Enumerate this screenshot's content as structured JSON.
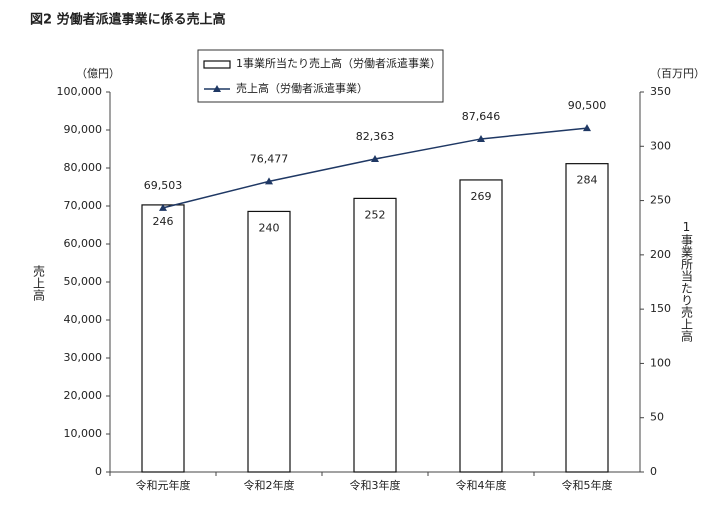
{
  "chart_data": {
    "type": "combo",
    "title": "図2 労働者派遣事業に係る売上高",
    "categories": [
      "令和元年度",
      "令和2年度",
      "令和3年度",
      "令和4年度",
      "令和5年度"
    ],
    "y_unit": "（億円）",
    "y2_unit": "（百万円）",
    "ylabel": "売上高",
    "y2label": "1事業所当たり売上高",
    "ylim": [
      0,
      100000
    ],
    "yticks": [
      0,
      {
        "value": 10000,
        "label": "10,000"
      },
      {
        "value": 20000,
        "label": "20,000"
      },
      {
        "value": 30000,
        "label": "30,000"
      },
      {
        "value": 40000,
        "label": "40,000"
      },
      {
        "value": 50000,
        "label": "50,000"
      },
      {
        "value": 60000,
        "label": "60,000"
      },
      {
        "value": 70000,
        "label": "70,000"
      },
      {
        "value": 80000,
        "label": "80,000"
      },
      {
        "value": 90000,
        "label": "90,000"
      },
      {
        "value": 100000,
        "label": "100,000"
      }
    ],
    "y2lim": [
      0,
      350
    ],
    "y2ticks": [
      0,
      50,
      100,
      150,
      200,
      250,
      300,
      350
    ],
    "series": [
      {
        "name": "1事業所当たり売上高（労働者派遣事業）",
        "type": "bar",
        "axis": "y2",
        "color": "#ffffff",
        "values": [
          246,
          240,
          252,
          269,
          284
        ]
      },
      {
        "name": "売上高（労働者派遣事業）",
        "type": "line",
        "axis": "y",
        "color": "#1f3864",
        "values": [
          69503,
          76477,
          82363,
          87646,
          90500
        ],
        "value_labels": [
          "69,503",
          "76,477",
          "82,363",
          "87,646",
          "90,500"
        ]
      }
    ]
  }
}
